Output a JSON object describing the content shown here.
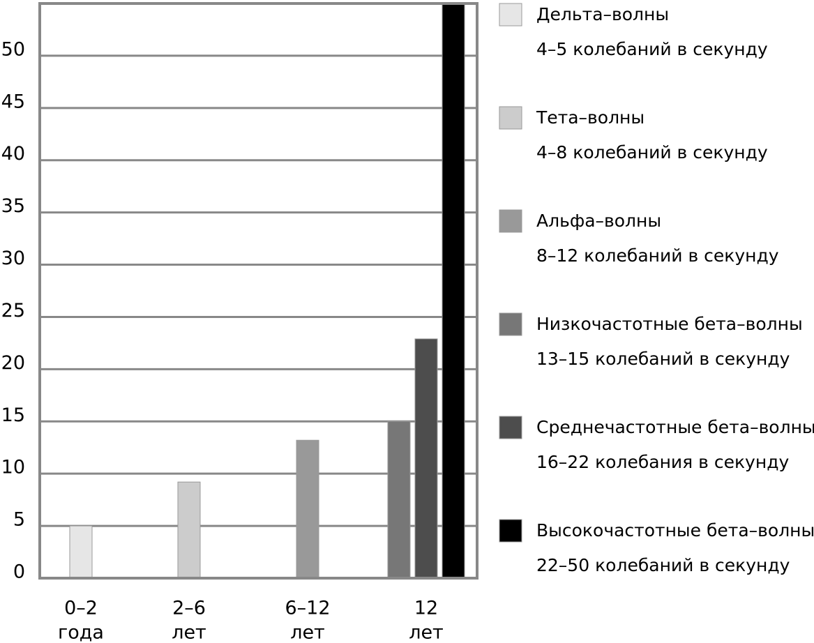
{
  "chart_data": {
    "type": "bar",
    "categories": [
      [
        "0–2",
        "года"
      ],
      [
        "2–6",
        "лет"
      ],
      [
        "6–12",
        "лет"
      ],
      [
        "12",
        "лет"
      ]
    ],
    "series": [
      {
        "name": "Дельта–волны",
        "description": "4–5 колебаний в секунду",
        "color": "#e6e6e6",
        "values": [
          5,
          null,
          null,
          null
        ]
      },
      {
        "name": "Тета–волны",
        "description": "4–8 колебаний в секунду",
        "color": "#cccccc",
        "values": [
          null,
          9.2,
          null,
          null
        ]
      },
      {
        "name": "Альфа–волны",
        "description": "8–12 колебаний в секунду",
        "color": "#999999",
        "values": [
          null,
          null,
          13.2,
          null
        ]
      },
      {
        "name": "Низкочастотные бета–волны",
        "description": "13–15 колебаний в секунду",
        "color": "#777777",
        "values": [
          null,
          null,
          null,
          15
        ]
      },
      {
        "name": "Среднечастотные бета–волны",
        "description": "16–22 колебания в секунду",
        "color": "#4d4d4d",
        "values": [
          null,
          null,
          null,
          22.9
        ]
      },
      {
        "name": "Высокочастотные бета–волны",
        "description": "22–50 колебаний в секунду",
        "color": "#000000",
        "values": [
          null,
          null,
          null,
          55
        ]
      }
    ],
    "ylim": [
      0,
      55
    ],
    "yticks": [
      0,
      5,
      10,
      15,
      20,
      25,
      30,
      35,
      40,
      45,
      50
    ],
    "grid": true
  }
}
